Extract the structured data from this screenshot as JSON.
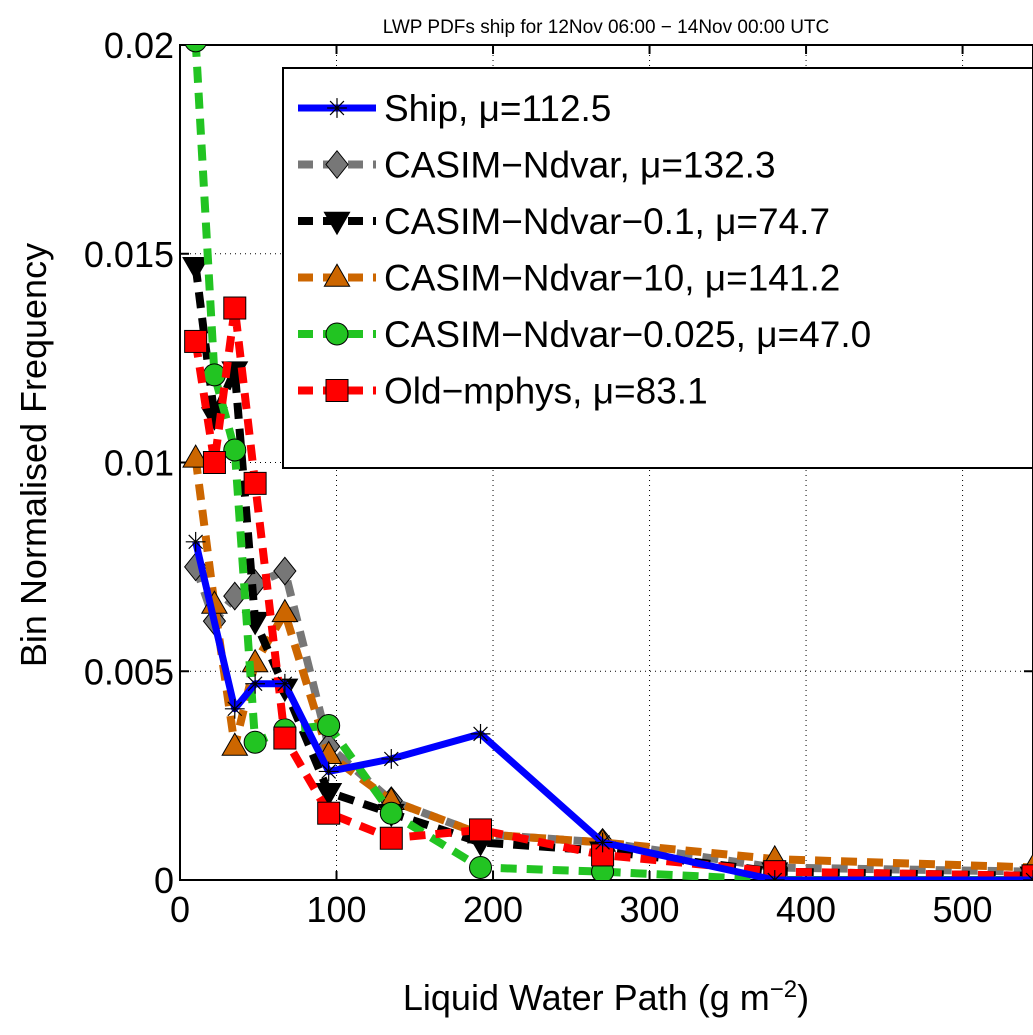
{
  "chart_data": {
    "type": "line",
    "title": "LWP PDFs ship for 12Nov 06:00 − 14Nov 00:00 UTC",
    "xlabel_main": "Liquid Water Path (g m",
    "xlabel_sup": "−2",
    "xlabel_end": ")",
    "ylabel": "Bin Normalised Frequency",
    "xlim": [
      0,
      545
    ],
    "ylim": [
      0,
      0.02
    ],
    "xticks": [
      0,
      100,
      200,
      300,
      400,
      500
    ],
    "xtick_labels": [
      "0",
      "100",
      "200",
      "300",
      "400",
      "500"
    ],
    "yticks": [
      0,
      0.005,
      0.01,
      0.015,
      0.02
    ],
    "ytick_labels": [
      "0",
      "0.005",
      "0.01",
      "0.015",
      "0.02"
    ],
    "grid": true,
    "legend_position": "top-right",
    "series": [
      {
        "name": "Ship, μ=112.5",
        "color": "#0000ff",
        "dash": "solid",
        "marker": "star",
        "x": [
          10,
          35,
          48,
          67,
          95,
          135,
          192,
          270,
          380,
          545
        ],
        "y": [
          0.0081,
          0.0041,
          0.0047,
          0.0047,
          0.0026,
          0.0029,
          0.0035,
          0.0009,
          0.0,
          0.0
        ]
      },
      {
        "name": "CASIM−Ndvar, μ=132.3",
        "color": "#777777",
        "dash": "dashed",
        "marker": "diamond",
        "x": [
          10,
          22,
          35,
          48,
          67,
          95,
          135,
          192,
          270,
          380,
          545
        ],
        "y": [
          0.0075,
          0.0062,
          0.0068,
          0.0071,
          0.0074,
          0.0032,
          0.0019,
          0.0011,
          0.0009,
          0.0003,
          0.0002
        ]
      },
      {
        "name": "CASIM−Ndvar−0.1, μ=74.7",
        "color": "#000000",
        "dash": "dashed",
        "marker": "triangle-down",
        "x": [
          10,
          22,
          35,
          48,
          67,
          95,
          135,
          192,
          270,
          380,
          545
        ],
        "y": [
          0.0147,
          0.0111,
          0.0122,
          0.0062,
          0.0046,
          0.0021,
          0.0016,
          0.0009,
          0.0007,
          0.0002,
          0.0001
        ]
      },
      {
        "name": "CASIM−Ndvar−10, μ=141.2",
        "color": "#cc6600",
        "dash": "dashed",
        "marker": "triangle-up",
        "x": [
          10,
          22,
          35,
          48,
          67,
          95,
          135,
          192,
          270,
          380,
          545
        ],
        "y": [
          0.0101,
          0.0066,
          0.0032,
          0.0052,
          0.0064,
          0.003,
          0.0019,
          0.0011,
          0.0009,
          0.0005,
          0.0003
        ]
      },
      {
        "name": "CASIM−Ndvar−0.025, μ=47.0",
        "color": "#22c422",
        "dash": "dashed",
        "marker": "circle",
        "x": [
          10,
          22,
          35,
          48,
          67,
          95,
          135,
          192,
          270,
          380,
          545
        ],
        "y": [
          0.0201,
          0.0121,
          0.0103,
          0.0033,
          0.0036,
          0.0037,
          0.0016,
          0.0003,
          0.0002,
          0.0,
          0.0
        ]
      },
      {
        "name": "Old−mphys, μ=83.1",
        "color": "#ff0000",
        "dash": "dashed",
        "marker": "square",
        "x": [
          10,
          22,
          35,
          48,
          67,
          95,
          135,
          192,
          270,
          380,
          545
        ],
        "y": [
          0.0129,
          0.01,
          0.0137,
          0.0095,
          0.0034,
          0.0016,
          0.001,
          0.0012,
          0.0006,
          0.0002,
          0.0001
        ]
      }
    ]
  }
}
